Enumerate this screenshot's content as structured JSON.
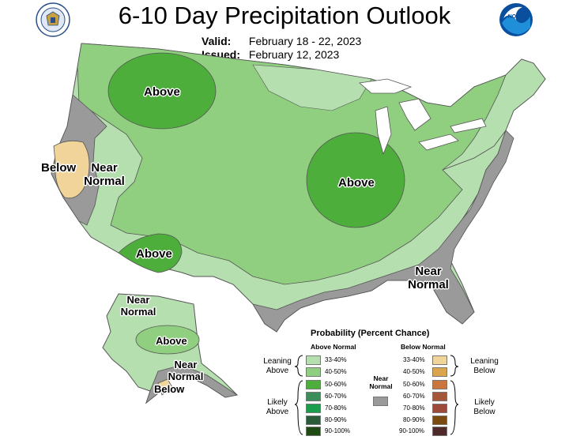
{
  "header": {
    "title": "6-10 Day Precipitation Outlook",
    "valid_label": "Valid:",
    "valid_value": "February 18 - 22, 2023",
    "issued_label": "Issued:",
    "issued_value": "February 12, 2023",
    "noaa_logo_text": "NOAA"
  },
  "map_labels": {
    "north_plains_above": "Above",
    "southwest_above": "Above",
    "midwest_above": "Above",
    "california_below": "Below",
    "west_near_normal": "Near Normal",
    "southeast_near_normal": "Near Normal",
    "alaska_near_normal_north": "Near Normal",
    "alaska_above": "Above",
    "alaska_near_normal_south": "Near Normal",
    "alaska_below": "Below"
  },
  "legend": {
    "title": "Probability (Percent Chance)",
    "above_header": "Above Normal",
    "below_header": "Below Normal",
    "near_normal_label": "Near Normal",
    "leaning_above": "Leaning Above",
    "likely_above": "Likely Above",
    "leaning_below": "Leaning Below",
    "likely_below": "Likely Below",
    "above_items": [
      {
        "label": "33-40%",
        "color": "#b5dfaf"
      },
      {
        "label": "40-50%",
        "color": "#90cf80"
      },
      {
        "label": "50-60%",
        "color": "#4eae3c"
      },
      {
        "label": "60-70%",
        "color": "#3b8e5a"
      },
      {
        "label": "70-80%",
        "color": "#1b9e4b"
      },
      {
        "label": "80-90%",
        "color": "#2a5c3a"
      },
      {
        "label": "90-100%",
        "color": "#1f4a14"
      }
    ],
    "below_items": [
      {
        "label": "33-40%",
        "color": "#f0d49a"
      },
      {
        "label": "40-50%",
        "color": "#dba54e"
      },
      {
        "label": "50-60%",
        "color": "#c9773f"
      },
      {
        "label": "60-70%",
        "color": "#a5573a"
      },
      {
        "label": "70-80%",
        "color": "#9e4a3a"
      },
      {
        "label": "80-90%",
        "color": "#7a4a10"
      },
      {
        "label": "90-100%",
        "color": "#4e2a2a"
      }
    ],
    "near_normal_color": "#9a9a9a"
  },
  "colors": {
    "leaning_above": "#b5dfaf",
    "above_40_50": "#90cf80",
    "above_50_60": "#4eae3c",
    "near_normal": "#9a9a9a",
    "below_33_40": "#f0d49a",
    "below_40_50": "#dba54e",
    "water": "#ffffff"
  }
}
